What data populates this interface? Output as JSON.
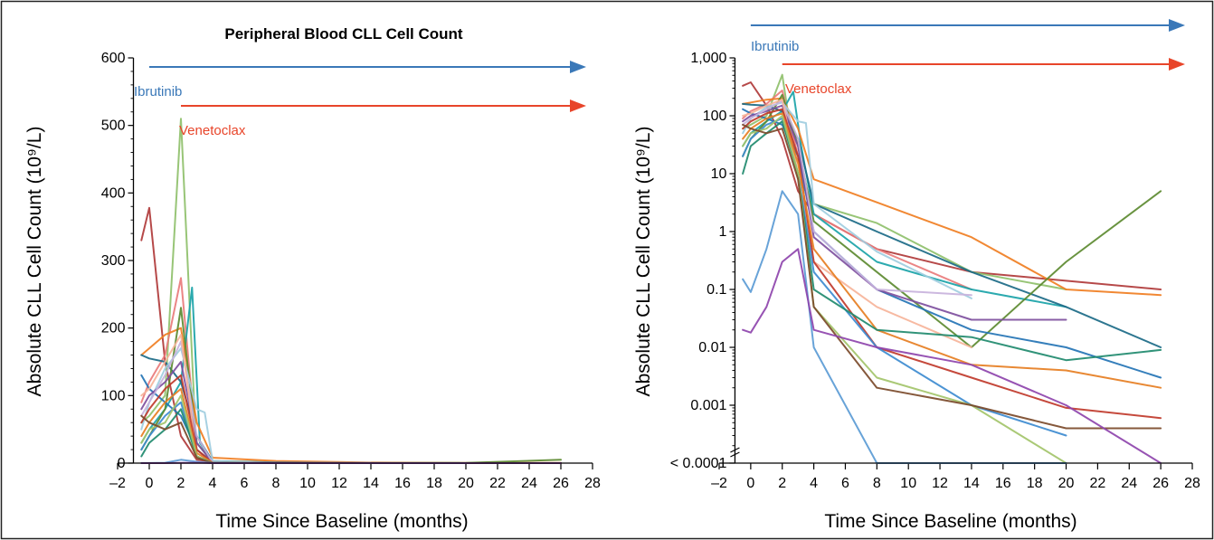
{
  "chart_data": [
    {
      "type": "line",
      "title": "Peripheral Blood CLL Cell Count",
      "xlabel": "Time Since Baseline (months)",
      "ylabel": "Absolute CLL Cell Count (10⁹/L)",
      "xlim": [
        -2,
        28
      ],
      "ylim": [
        0,
        600
      ],
      "x_ticks": [
        "–2",
        "0",
        "2",
        "4",
        "6",
        "8",
        "10",
        "12",
        "14",
        "16",
        "18",
        "20",
        "22",
        "24",
        "26",
        "28"
      ],
      "y_ticks": [
        "0",
        "100",
        "200",
        "300",
        "400",
        "500",
        "600"
      ],
      "treatments": [
        {
          "name": "Ibrutinib",
          "start": 0,
          "color": "#3a78b8"
        },
        {
          "name": "Venetoclax",
          "start": 2,
          "color": "#e8452a"
        }
      ],
      "series": [
        {
          "color": "#b03a3a",
          "x": [
            -0.5,
            0,
            1,
            2,
            3,
            4,
            6,
            8,
            14,
            26
          ],
          "y": [
            330,
            378,
            150,
            40,
            5,
            2,
            1,
            0.5,
            0.2,
            0.1
          ]
        },
        {
          "color": "#8fc06b",
          "x": [
            -0.5,
            0,
            1,
            2,
            3,
            4,
            8,
            14,
            20
          ],
          "y": [
            60,
            70,
            100,
            510,
            8,
            3,
            1.4,
            0.2,
            0.1
          ]
        },
        {
          "color": "#e97b7b",
          "x": [
            -0.5,
            0,
            1,
            2,
            3,
            4,
            8,
            14
          ],
          "y": [
            90,
            120,
            160,
            274,
            20,
            2,
            0.5,
            0.1
          ]
        },
        {
          "color": "#1aa3a8",
          "x": [
            -0.5,
            0,
            1,
            2,
            2.7,
            3.2,
            4,
            8,
            14,
            20
          ],
          "y": [
            30,
            50,
            80,
            120,
            260,
            30,
            2,
            0.3,
            0.1,
            0.05
          ]
        },
        {
          "color": "#f07e22",
          "x": [
            -0.5,
            0,
            1,
            2,
            3,
            4,
            8,
            14,
            20,
            26
          ],
          "y": [
            160,
            170,
            190,
            200,
            60,
            8,
            3.2,
            0.8,
            0.1,
            0.08
          ]
        },
        {
          "color": "#1b6a87",
          "x": [
            -0.5,
            0,
            1,
            2,
            3,
            4,
            8,
            14,
            20,
            26
          ],
          "y": [
            160,
            155,
            150,
            120,
            40,
            3,
            1,
            0.2,
            0.05,
            0.01
          ]
        },
        {
          "color": "#5c8a30",
          "x": [
            -0.5,
            0,
            1,
            2,
            3,
            4,
            8,
            14,
            20,
            26
          ],
          "y": [
            20,
            40,
            80,
            230,
            30,
            1.5,
            0.2,
            0.01,
            0.3,
            5
          ]
        },
        {
          "color": "#9fcde0",
          "x": [
            -0.5,
            0,
            1,
            2,
            3,
            3.5,
            4,
            8,
            14
          ],
          "y": [
            50,
            90,
            140,
            170,
            80,
            75,
            3,
            0.45,
            0.07
          ]
        },
        {
          "color": "#2474b5",
          "x": [
            -0.5,
            0,
            1,
            2,
            3,
            4,
            8,
            14,
            20,
            26
          ],
          "y": [
            130,
            110,
            90,
            70,
            20,
            1,
            0.1,
            0.02,
            0.01,
            0.003
          ]
        },
        {
          "color": "#7e4f9e",
          "x": [
            -0.5,
            0,
            1,
            2,
            3,
            4,
            8,
            14,
            20
          ],
          "y": [
            80,
            100,
            120,
            150,
            30,
            0.8,
            0.1,
            0.03,
            0.03
          ]
        },
        {
          "color": "#c8b2dc",
          "x": [
            -0.5,
            0,
            1,
            2,
            3,
            4,
            8,
            14
          ],
          "y": [
            70,
            90,
            130,
            180,
            40,
            1,
            0.1,
            0.08
          ]
        },
        {
          "color": "#f6b49a",
          "x": [
            -0.5,
            0,
            1,
            2,
            3,
            4,
            8,
            14
          ],
          "y": [
            100,
            110,
            150,
            190,
            10,
            0.3,
            0.05,
            0.01
          ]
        },
        {
          "color": "#c0392b",
          "x": [
            -0.5,
            0,
            1,
            2,
            3,
            4,
            8,
            14,
            20,
            26
          ],
          "y": [
            60,
            80,
            110,
            130,
            20,
            0.3,
            0.01,
            0.003,
            0.0009,
            0.0006
          ]
        },
        {
          "color": "#e67e22",
          "x": [
            -0.5,
            0,
            1,
            2,
            3,
            4,
            8,
            14,
            20,
            26
          ],
          "y": [
            40,
            60,
            90,
            110,
            15,
            0.5,
            0.02,
            0.005,
            0.004,
            0.002
          ]
        },
        {
          "color": "#3d8bd0",
          "x": [
            -0.5,
            0,
            1,
            2,
            3,
            4,
            8,
            14,
            20
          ],
          "y": [
            20,
            40,
            70,
            90,
            10,
            0.2,
            0.01,
            0.001,
            0.0003
          ]
        },
        {
          "color": "#1f8a6e",
          "x": [
            -0.5,
            0,
            1,
            2,
            3,
            4,
            8,
            14,
            20,
            26
          ],
          "y": [
            10,
            30,
            50,
            80,
            10,
            0.1,
            0.02,
            0.015,
            0.006,
            0.009
          ]
        },
        {
          "color": "#a3c46a",
          "x": [
            -0.5,
            0,
            1,
            2,
            3,
            4,
            8,
            14,
            20
          ],
          "y": [
            30,
            50,
            60,
            100,
            10,
            0.05,
            0.003,
            0.001,
            0.0001
          ]
        },
        {
          "color": "#7b4a2a",
          "x": [
            -0.5,
            0,
            1,
            2,
            3,
            4,
            8,
            14,
            20,
            26
          ],
          "y": [
            70,
            60,
            50,
            60,
            8,
            0.05,
            0.002,
            0.001,
            0.0004,
            0.0004
          ]
        },
        {
          "color": "#5b9bd5",
          "x": [
            -0.5,
            0,
            1,
            2,
            3,
            4,
            8,
            14,
            20
          ],
          "y": [
            0.15,
            0.09,
            0.5,
            5,
            2,
            0.01,
            0.0001,
            0.0001,
            0.0001
          ]
        },
        {
          "color": "#8e44ad",
          "x": [
            -0.5,
            0,
            1,
            2,
            3,
            4,
            8,
            14,
            20,
            26
          ],
          "y": [
            0.02,
            0.018,
            0.05,
            0.3,
            0.5,
            0.02,
            0.01,
            0.005,
            0.001,
            0.0001
          ]
        }
      ]
    },
    {
      "type": "line",
      "title": "",
      "xlabel": "Time Since Baseline (months)",
      "ylabel": "Absolute CLL Cell Count (10⁹/L)",
      "xlim": [
        -2,
        28
      ],
      "ylim": [
        0.0001,
        1000
      ],
      "y_scale": "log",
      "x_ticks": [
        "–2",
        "0",
        "2",
        "4",
        "6",
        "8",
        "10",
        "12",
        "14",
        "16",
        "18",
        "20",
        "22",
        "24",
        "26",
        "28"
      ],
      "y_ticks": [
        {
          "value": 0.0001,
          "label": "< 0.0001"
        },
        {
          "value": 0.001,
          "label": "0.001"
        },
        {
          "value": 0.01,
          "label": "0.01"
        },
        {
          "value": 0.1,
          "label": "0.1"
        },
        {
          "value": 1,
          "label": "1"
        },
        {
          "value": 10,
          "label": "10"
        },
        {
          "value": 100,
          "label": "100"
        },
        {
          "value": 1000,
          "label": "1,000"
        }
      ],
      "treatments": [
        {
          "name": "Ibrutinib",
          "start": 0,
          "color": "#3a78b8"
        },
        {
          "name": "Venetoclax",
          "start": 2,
          "color": "#e8452a"
        }
      ],
      "series": [
        {
          "color": "#b03a3a",
          "x": [
            -0.5,
            0,
            1,
            2,
            3,
            4,
            6,
            8,
            14,
            26
          ],
          "y": [
            330,
            378,
            150,
            40,
            5,
            2,
            1,
            0.5,
            0.2,
            0.1
          ]
        },
        {
          "color": "#8fc06b",
          "x": [
            -0.5,
            0,
            1,
            2,
            3,
            4,
            8,
            14,
            20
          ],
          "y": [
            60,
            70,
            100,
            510,
            8,
            3,
            1.4,
            0.2,
            0.1
          ]
        },
        {
          "color": "#e97b7b",
          "x": [
            -0.5,
            0,
            1,
            2,
            3,
            4,
            8,
            14
          ],
          "y": [
            90,
            120,
            160,
            274,
            20,
            2,
            0.5,
            0.1
          ]
        },
        {
          "color": "#1aa3a8",
          "x": [
            -0.5,
            0,
            1,
            2,
            2.7,
            3.2,
            4,
            8,
            14,
            20
          ],
          "y": [
            30,
            50,
            80,
            120,
            260,
            30,
            2,
            0.3,
            0.1,
            0.05
          ]
        },
        {
          "color": "#f07e22",
          "x": [
            -0.5,
            0,
            1,
            2,
            3,
            4,
            8,
            14,
            20,
            26
          ],
          "y": [
            160,
            170,
            190,
            200,
            60,
            8,
            3.2,
            0.8,
            0.1,
            0.08
          ]
        },
        {
          "color": "#1b6a87",
          "x": [
            -0.5,
            0,
            1,
            2,
            3,
            4,
            8,
            14,
            20,
            26
          ],
          "y": [
            160,
            155,
            150,
            120,
            40,
            3,
            1,
            0.2,
            0.05,
            0.01
          ]
        },
        {
          "color": "#5c8a30",
          "x": [
            -0.5,
            0,
            1,
            2,
            3,
            4,
            8,
            14,
            20,
            26
          ],
          "y": [
            20,
            40,
            80,
            230,
            30,
            1.5,
            0.2,
            0.01,
            0.3,
            5
          ]
        },
        {
          "color": "#9fcde0",
          "x": [
            -0.5,
            0,
            1,
            2,
            3,
            3.5,
            4,
            8,
            14
          ],
          "y": [
            50,
            90,
            140,
            170,
            80,
            75,
            3,
            0.45,
            0.07
          ]
        },
        {
          "color": "#2474b5",
          "x": [
            -0.5,
            0,
            1,
            2,
            3,
            4,
            8,
            14,
            20,
            26
          ],
          "y": [
            130,
            110,
            90,
            70,
            20,
            1,
            0.1,
            0.02,
            0.01,
            0.003
          ]
        },
        {
          "color": "#7e4f9e",
          "x": [
            -0.5,
            0,
            1,
            2,
            3,
            4,
            8,
            14,
            20
          ],
          "y": [
            80,
            100,
            120,
            150,
            30,
            0.8,
            0.1,
            0.03,
            0.03
          ]
        },
        {
          "color": "#c8b2dc",
          "x": [
            -0.5,
            0,
            1,
            2,
            3,
            4,
            8,
            14
          ],
          "y": [
            70,
            90,
            130,
            180,
            40,
            1,
            0.1,
            0.08
          ]
        },
        {
          "color": "#f6b49a",
          "x": [
            -0.5,
            0,
            1,
            2,
            3,
            4,
            8,
            14
          ],
          "y": [
            100,
            110,
            150,
            190,
            10,
            0.3,
            0.05,
            0.01
          ]
        },
        {
          "color": "#c0392b",
          "x": [
            -0.5,
            0,
            1,
            2,
            3,
            4,
            8,
            14,
            20,
            26
          ],
          "y": [
            60,
            80,
            110,
            130,
            20,
            0.3,
            0.01,
            0.003,
            0.0009,
            0.0006
          ]
        },
        {
          "color": "#e67e22",
          "x": [
            -0.5,
            0,
            1,
            2,
            3,
            4,
            8,
            14,
            20,
            26
          ],
          "y": [
            40,
            60,
            90,
            110,
            15,
            0.5,
            0.02,
            0.005,
            0.004,
            0.002
          ]
        },
        {
          "color": "#3d8bd0",
          "x": [
            -0.5,
            0,
            1,
            2,
            3,
            4,
            8,
            14,
            20
          ],
          "y": [
            20,
            40,
            70,
            90,
            10,
            0.2,
            0.01,
            0.001,
            0.0003
          ]
        },
        {
          "color": "#1f8a6e",
          "x": [
            -0.5,
            0,
            1,
            2,
            3,
            4,
            8,
            14,
            20,
            26
          ],
          "y": [
            10,
            30,
            50,
            80,
            10,
            0.1,
            0.02,
            0.015,
            0.006,
            0.009
          ]
        },
        {
          "color": "#a3c46a",
          "x": [
            -0.5,
            0,
            1,
            2,
            3,
            4,
            8,
            14,
            20
          ],
          "y": [
            30,
            50,
            60,
            100,
            10,
            0.05,
            0.003,
            0.001,
            0.0001
          ]
        },
        {
          "color": "#7b4a2a",
          "x": [
            -0.5,
            0,
            1,
            2,
            3,
            4,
            8,
            14,
            20,
            26
          ],
          "y": [
            70,
            60,
            50,
            60,
            8,
            0.05,
            0.002,
            0.001,
            0.0004,
            0.0004
          ]
        },
        {
          "color": "#5b9bd5",
          "x": [
            -0.5,
            0,
            1,
            2,
            3,
            4,
            8,
            14,
            20
          ],
          "y": [
            0.15,
            0.09,
            0.5,
            5,
            2,
            0.01,
            0.0001,
            0.0001,
            0.0001
          ]
        },
        {
          "color": "#8e44ad",
          "x": [
            -0.5,
            0,
            1,
            2,
            3,
            4,
            8,
            14,
            20,
            26
          ],
          "y": [
            0.02,
            0.018,
            0.05,
            0.3,
            0.5,
            0.02,
            0.01,
            0.005,
            0.001,
            0.0001
          ]
        }
      ]
    }
  ]
}
